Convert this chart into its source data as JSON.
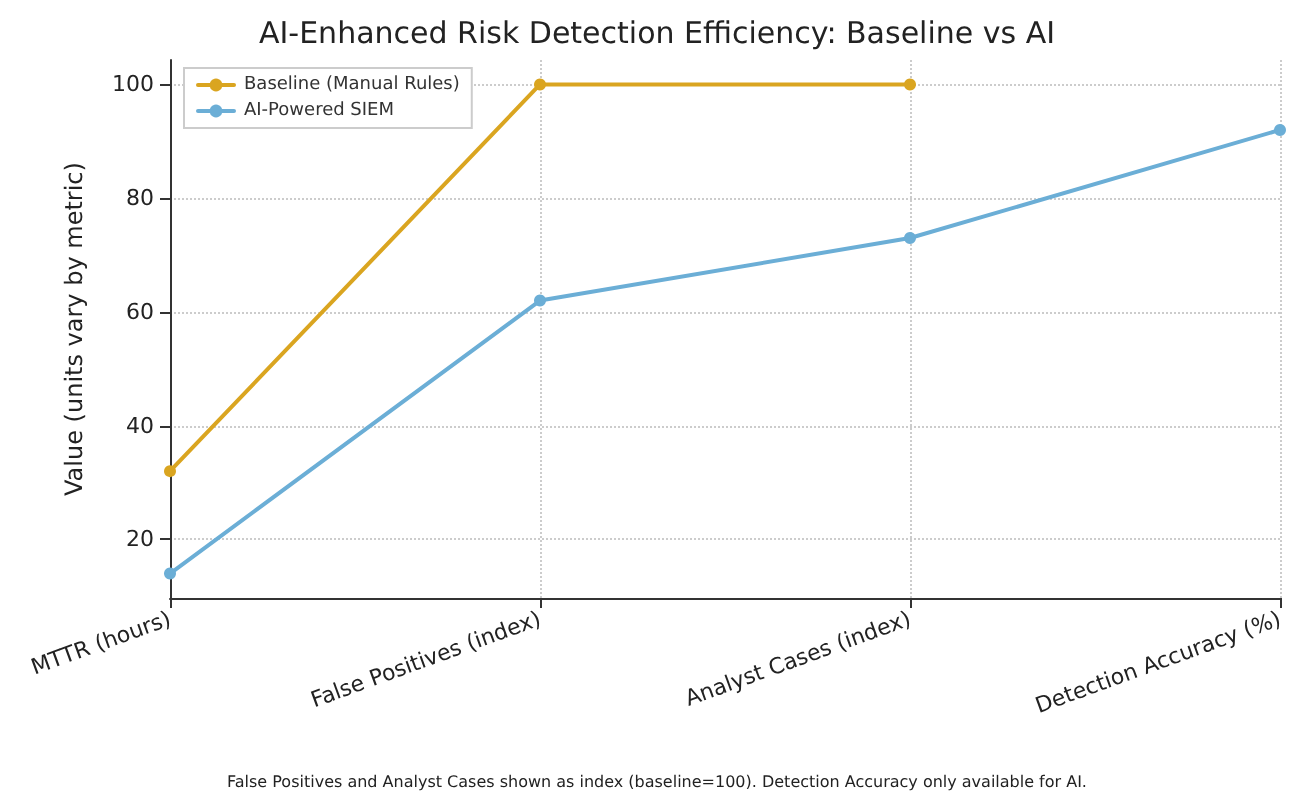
{
  "chart_data": {
    "type": "line",
    "title": "AI-Enhanced Risk Detection Efficiency: Baseline vs AI",
    "ylabel": "Value (units vary by metric)",
    "categories": [
      "MTTR (hours)",
      "False Positives (index)",
      "Analyst Cases (index)",
      "Detection Accuracy (%)"
    ],
    "series": [
      {
        "name": "Baseline (Manual Rules)",
        "color": "#daa520",
        "values": [
          32,
          100,
          100,
          null
        ]
      },
      {
        "name": "AI-Powered SIEM",
        "color": "#6baed6",
        "values": [
          14,
          62,
          73,
          92
        ]
      }
    ],
    "ylim": [
      9.7,
      104.3
    ],
    "yticks": [
      20,
      40,
      60,
      80,
      100
    ],
    "grid": true,
    "legend": "top left",
    "marker": "circle",
    "line_style": "solid",
    "annotations": [
      "False Positives and Analyst Cases shown as index (baseline=100). Detection Accuracy only available for AI."
    ]
  }
}
